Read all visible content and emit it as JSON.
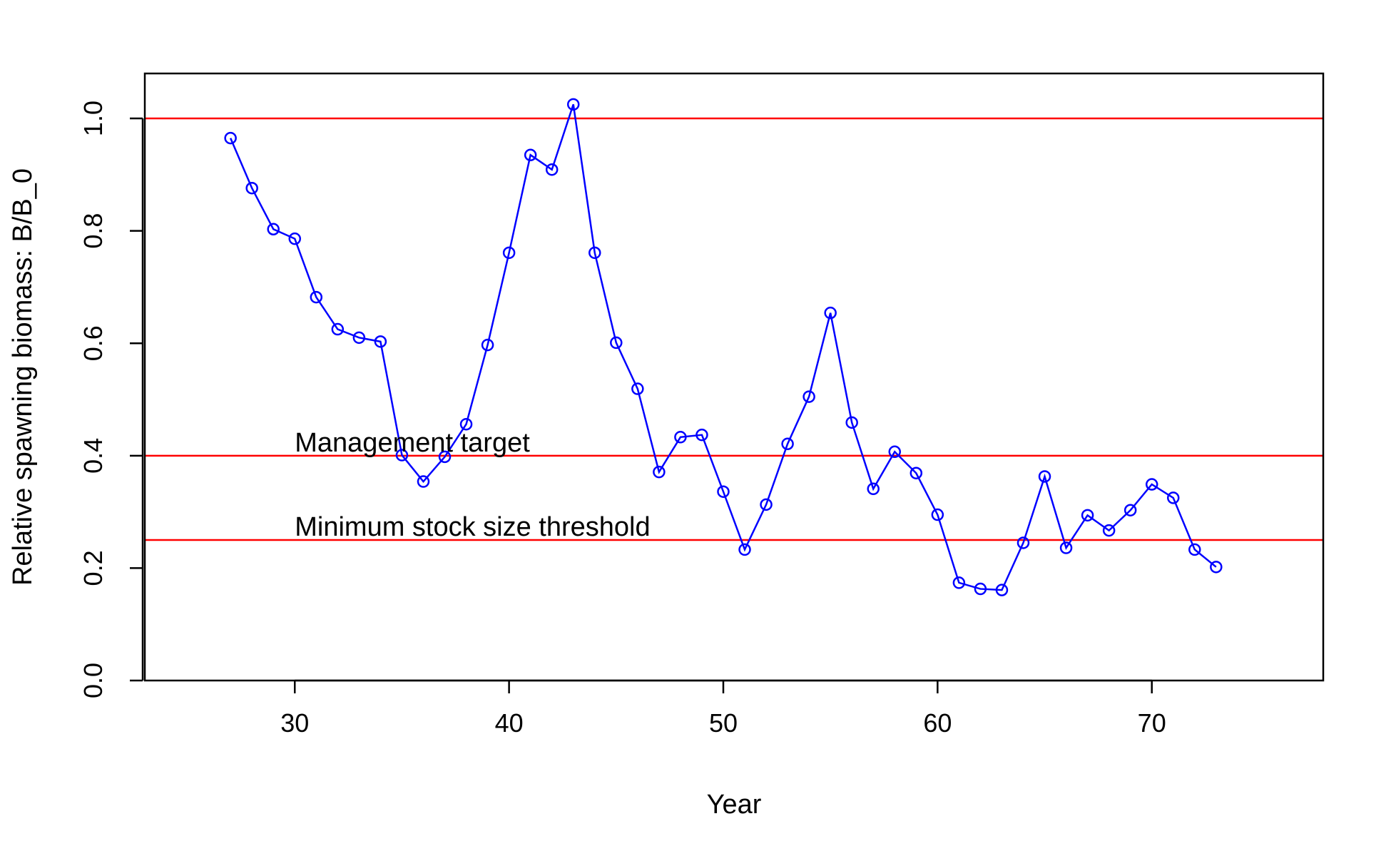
{
  "chart_data": {
    "type": "line",
    "title": "",
    "xlabel": "Year",
    "ylabel": "Relative spawning biomass: B/B_0",
    "xlim": [
      23,
      78
    ],
    "ylim": [
      0,
      1.08
    ],
    "x_ticks": [
      30,
      40,
      50,
      60,
      70
    ],
    "x_tick_labels": [
      "30",
      "40",
      "50",
      "60",
      "70"
    ],
    "y_ticks": [
      0,
      0.2,
      0.4,
      0.6,
      0.8,
      1.0
    ],
    "y_tick_labels": [
      "0.0",
      "0.2",
      "0.4",
      "0.6",
      "0.8",
      "1.0"
    ],
    "grid": false,
    "series_color": "#0000ff",
    "reference_color": "#ff0000",
    "series": [
      {
        "x": [
          27,
          28,
          29,
          30,
          31,
          32,
          33,
          34,
          35,
          36,
          37,
          38,
          39,
          40,
          41,
          42,
          43,
          44,
          45,
          46,
          47,
          48,
          49,
          50,
          51,
          52,
          53,
          54,
          55,
          56,
          57,
          58,
          59,
          60,
          61,
          62,
          63,
          64,
          65,
          66,
          67,
          68,
          69,
          70,
          71,
          72,
          73
        ],
        "values": [
          0.965,
          0.876,
          0.803,
          0.786,
          0.682,
          0.625,
          0.61,
          0.603,
          0.401,
          0.354,
          0.398,
          0.456,
          0.597,
          0.761,
          0.935,
          0.909,
          1.025,
          0.761,
          0.601,
          0.519,
          0.371,
          0.433,
          0.437,
          0.336,
          0.233,
          0.313,
          0.421,
          0.505,
          0.654,
          0.459,
          0.341,
          0.407,
          0.369,
          0.295,
          0.174,
          0.163,
          0.161,
          0.245,
          0.363,
          0.236,
          0.294,
          0.267,
          0.303,
          0.349,
          0.325,
          0.233,
          0.202
        ]
      }
    ],
    "reference_lines": [
      {
        "y": 1.0,
        "label": ""
      },
      {
        "y": 0.4,
        "label": "Management target"
      },
      {
        "y": 0.25,
        "label": "Minimum stock size threshold"
      }
    ],
    "annotation_x": 30
  }
}
